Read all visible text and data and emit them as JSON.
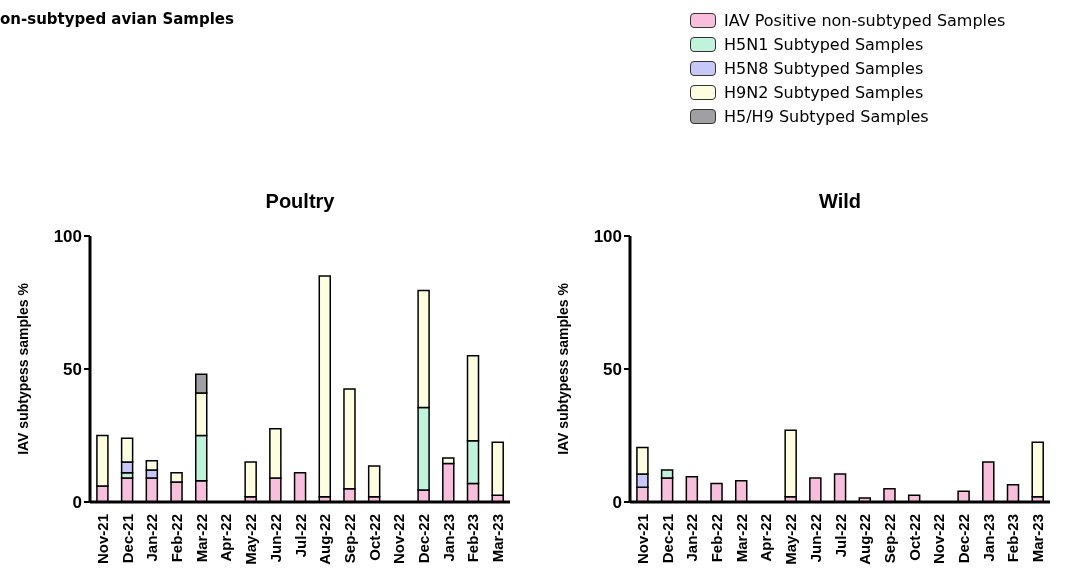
{
  "chart_data": [
    {
      "type": "bar",
      "title": "Poultry",
      "ylabel": "IAV subtypess samples %",
      "annotations": [
        "on-subtyped avian Samples"
      ],
      "stacked": true,
      "legend": "top right",
      "categories": [
        "Nov-21",
        "Dec-21",
        "Jan-22",
        "Feb-22",
        "Mar-22",
        "Apr-22",
        "May-22",
        "Jun-22",
        "Jul-22",
        "Aug-22",
        "Sep-22",
        "Oct-22",
        "Nov-22",
        "Dec-22",
        "Jan-23",
        "Feb-23",
        "Mar-23"
      ],
      "ylim": [
        0,
        100
      ],
      "yticks": [
        0,
        50,
        100
      ],
      "series": [
        {
          "name": "IAV Positive non-subtyped Samples",
          "color": "#f7bfdc",
          "values": [
            6,
            9,
            9,
            7.5,
            8,
            null,
            2,
            9,
            11,
            2,
            5,
            2,
            null,
            4.5,
            14.5,
            7,
            2.5
          ]
        },
        {
          "name": "H5N1 Subtyped Samples",
          "color": "#c0f2dc",
          "values": [
            null,
            2,
            null,
            null,
            17,
            null,
            null,
            null,
            null,
            null,
            null,
            null,
            null,
            31,
            null,
            16,
            null
          ]
        },
        {
          "name": "H5N8 Subtyped Samples",
          "color": "#c8c8f8",
          "values": [
            null,
            4,
            3,
            null,
            null,
            null,
            null,
            null,
            null,
            null,
            null,
            null,
            null,
            null,
            null,
            null,
            null
          ]
        },
        {
          "name": "H9N2 Subtyped Samples",
          "color": "#fdfde0",
          "values": [
            19,
            9,
            3.5,
            3.5,
            16,
            null,
            13,
            18.5,
            null,
            83,
            37.5,
            11.5,
            null,
            44,
            2,
            32,
            20
          ]
        },
        {
          "name": "H5/H9 Subtyped Samples",
          "color": "#a0a0a4",
          "values": [
            null,
            null,
            null,
            null,
            7,
            null,
            null,
            null,
            null,
            null,
            null,
            null,
            null,
            null,
            null,
            null,
            null
          ]
        }
      ]
    },
    {
      "type": "bar",
      "title": "Wild",
      "ylabel": "IAV subtypess samples %",
      "stacked": true,
      "categories": [
        "Nov-21",
        "Dec-21",
        "Jan-22",
        "Feb-22",
        "Mar-22",
        "Apr-22",
        "May-22",
        "Jun-22",
        "Jul-22",
        "Aug-22",
        "Sep-22",
        "Oct-22",
        "Nov-22",
        "Dec-22",
        "Jan-23",
        "Feb-23",
        "Mar-23"
      ],
      "ylim": [
        0,
        100
      ],
      "yticks": [
        0,
        50,
        100
      ],
      "series": [
        {
          "color": "#f7bfdc",
          "values": [
            5.5,
            9,
            9.5,
            7,
            8,
            null,
            2,
            9,
            10.5,
            1.5,
            5,
            2.5,
            null,
            4,
            15,
            6.5,
            2
          ]
        },
        {
          "color": "#c0f2dc",
          "values": [
            null,
            3,
            null,
            null,
            null,
            null,
            null,
            null,
            null,
            null,
            null,
            null,
            null,
            null,
            null,
            null,
            null
          ]
        },
        {
          "color": "#c8c8f8",
          "values": [
            5,
            null,
            null,
            null,
            null,
            null,
            null,
            null,
            null,
            null,
            null,
            null,
            null,
            null,
            null,
            null,
            null
          ]
        },
        {
          "color": "#fdfde0",
          "values": [
            10,
            null,
            null,
            null,
            null,
            null,
            25,
            null,
            null,
            null,
            null,
            null,
            null,
            null,
            null,
            null,
            20.5
          ]
        }
      ]
    }
  ]
}
